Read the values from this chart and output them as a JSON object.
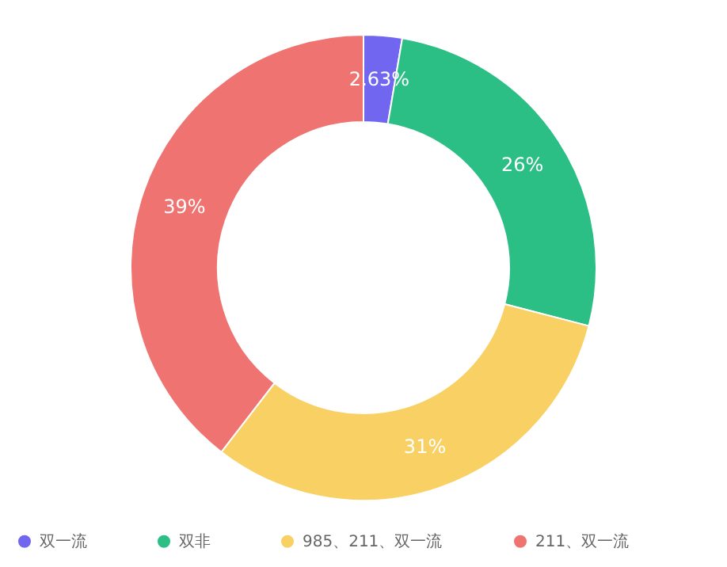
{
  "chart_data": {
    "type": "donut",
    "categories": [
      "双一流",
      "双非",
      "985、211、双一流",
      "211、双一流"
    ],
    "values": [
      2.63,
      26,
      31,
      39
    ],
    "colors": [
      "#7166f0",
      "#2bbf85",
      "#f8d063",
      "#ef7370"
    ],
    "value_labels": [
      "2.63%",
      "26%",
      "31%",
      "39%"
    ],
    "legend": "bottom"
  }
}
